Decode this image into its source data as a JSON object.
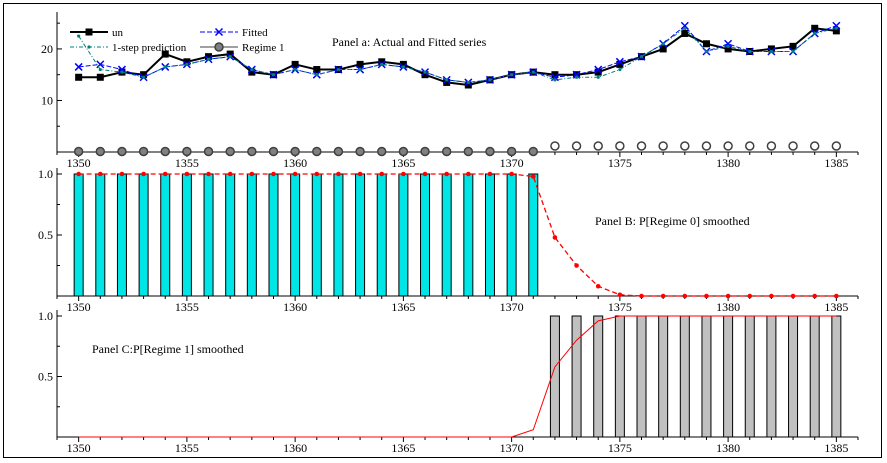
{
  "chart_data": [
    {
      "type": "line",
      "title": "Panel a: Actual and Fitted series",
      "xlim": [
        1349,
        1386
      ],
      "ylim": [
        0,
        26
      ],
      "x": [
        1350,
        1351,
        1352,
        1353,
        1354,
        1355,
        1356,
        1357,
        1358,
        1359,
        1360,
        1361,
        1362,
        1363,
        1364,
        1365,
        1366,
        1367,
        1368,
        1369,
        1370,
        1371,
        1372,
        1373,
        1374,
        1375,
        1376,
        1377,
        1378,
        1379,
        1380,
        1381,
        1382,
        1383,
        1384,
        1385
      ],
      "x_ticks": [
        "1350",
        "1355",
        "1360",
        "1365",
        "1370",
        "1375",
        "1380",
        "1385"
      ],
      "y_ticks": [
        "10",
        "20"
      ],
      "legend": [
        "un",
        "Fitted",
        "1-step prediction",
        "Regime 1"
      ],
      "legend_position": "top-left",
      "series": [
        {
          "name": "un",
          "color": "#000000",
          "values": [
            14.5,
            14.5,
            15.5,
            15,
            19,
            17.5,
            18.5,
            19,
            15.5,
            15,
            17,
            16,
            16,
            17,
            17.5,
            17,
            15,
            13.5,
            13,
            14,
            15,
            15.5,
            15,
            15,
            15.5,
            17,
            18.5,
            20,
            23,
            21,
            20,
            19.5,
            20,
            20.5,
            24,
            23.5
          ]
        },
        {
          "name": "Fitted",
          "color": "#0000ff",
          "values": [
            16.5,
            17,
            16,
            14.5,
            16.5,
            17,
            18,
            18.5,
            16,
            15,
            16,
            15,
            16,
            16,
            17,
            16.5,
            15.5,
            14,
            13.5,
            14,
            15,
            15.5,
            14.5,
            15,
            16,
            17.5,
            18.5,
            21,
            24.5,
            19.5,
            21,
            19.5,
            19.5,
            19.5,
            23,
            24.5
          ]
        },
        {
          "name": "1-step prediction",
          "color": "#007f7f",
          "values": [
            22.5,
            16,
            15.5,
            14.5,
            16.5,
            17,
            18,
            18.5,
            16,
            15,
            16,
            15,
            16,
            16,
            17,
            16.5,
            15.5,
            14,
            13.5,
            14,
            15,
            15.5,
            14,
            14.5,
            14.5,
            16,
            18.5,
            21,
            24,
            19.5,
            20.5,
            19.5,
            19.5,
            19.5,
            23,
            24
          ]
        },
        {
          "name": "Regime 1",
          "color": "#404040",
          "regime": [
            0,
            0,
            0,
            0,
            0,
            0,
            0,
            0,
            0,
            0,
            0,
            0,
            0,
            0,
            0,
            0,
            0,
            0,
            0,
            0,
            0,
            0,
            1,
            1,
            1,
            1,
            1,
            1,
            1,
            1,
            1,
            1,
            1,
            1,
            1,
            1
          ]
        }
      ]
    },
    {
      "type": "bar",
      "title": "Panel B: P[Regime 0] smoothed",
      "xlim": [
        1349,
        1386
      ],
      "ylim": [
        0,
        1
      ],
      "x_ticks": [
        "1350",
        "1355",
        "1360",
        "1365",
        "1370",
        "1375",
        "1380",
        "1385"
      ],
      "y_ticks": [
        "0.5",
        "1.0"
      ],
      "bar_color": "#00e5e5",
      "bars": [
        1,
        1,
        1,
        1,
        1,
        1,
        1,
        1,
        1,
        1,
        1,
        1,
        1,
        1,
        1,
        1,
        1,
        1,
        1,
        1,
        1,
        1,
        0,
        0,
        0,
        0,
        0,
        0,
        0,
        0,
        0,
        0,
        0,
        0,
        0,
        0
      ],
      "smoothed_color": "#ff0000",
      "smoothed": [
        1,
        1,
        1,
        1,
        1,
        1,
        1,
        1,
        1,
        1,
        1,
        1,
        1,
        1,
        1,
        1,
        1,
        1,
        1,
        1,
        1,
        0.98,
        0.48,
        0.25,
        0.08,
        0.01,
        0,
        0,
        0,
        0,
        0,
        0,
        0,
        0,
        0,
        0
      ]
    },
    {
      "type": "bar",
      "title": "Panel C:P[Regime 1] smoothed",
      "xlim": [
        1349,
        1386
      ],
      "ylim": [
        0,
        1
      ],
      "x_ticks": [
        "1350",
        "1355",
        "1360",
        "1365",
        "1370",
        "1375",
        "1380",
        "1385"
      ],
      "y_ticks": [
        "0.5",
        "1.0"
      ],
      "bar_color": "#c0c0c0",
      "bars": [
        0,
        0,
        0,
        0,
        0,
        0,
        0,
        0,
        0,
        0,
        0,
        0,
        0,
        0,
        0,
        0,
        0,
        0,
        0,
        0,
        0,
        0,
        1,
        1,
        1,
        1,
        1,
        1,
        1,
        1,
        1,
        1,
        1,
        1,
        1,
        1
      ],
      "smoothed_color": "#ff0000",
      "smoothed": [
        0,
        0,
        0,
        0,
        0,
        0,
        0,
        0,
        0,
        0,
        0,
        0,
        0,
        0,
        0,
        0,
        0,
        0,
        0,
        0,
        0,
        0.06,
        0.58,
        0.8,
        0.96,
        1,
        1,
        1,
        1,
        1,
        1,
        1,
        1,
        1,
        1,
        1
      ]
    }
  ]
}
